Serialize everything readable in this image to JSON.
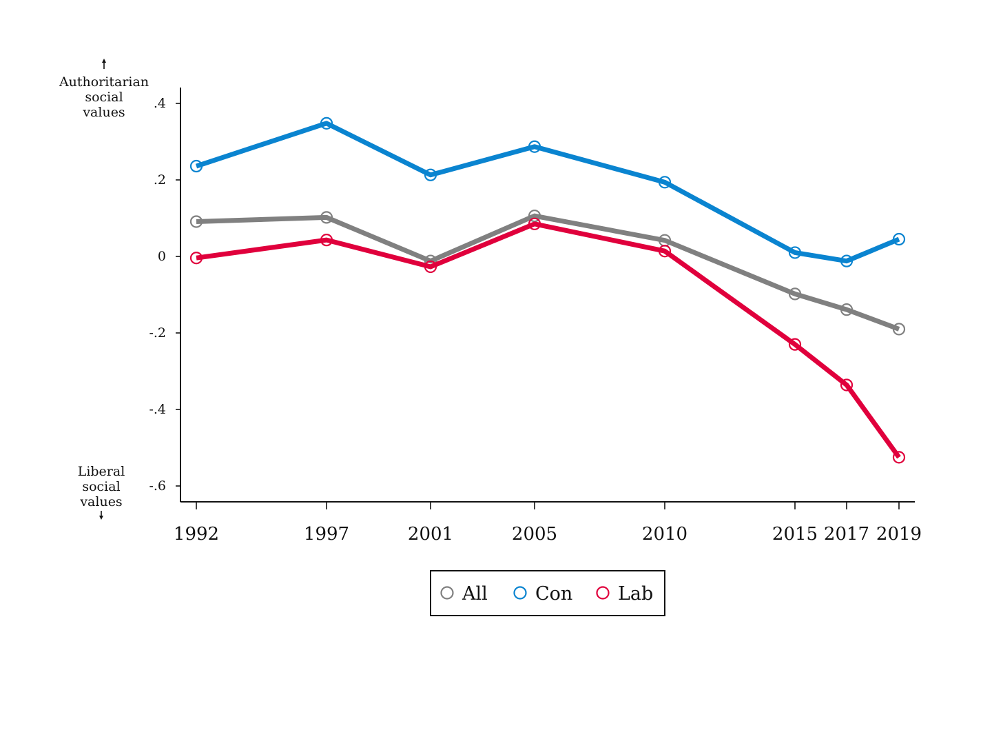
{
  "chart_data": {
    "type": "line",
    "title": "",
    "xlabel": "",
    "ylabel": "",
    "x": [
      1992,
      1997,
      2001,
      2005,
      2010,
      2015,
      2017,
      2019
    ],
    "x_tick_labels": [
      "1992",
      "1997",
      "2001",
      "2005",
      "2010",
      "2015",
      "2017",
      "2019"
    ],
    "xlim": [
      1991.4,
      2020.6
    ],
    "ylim": [
      -0.64,
      0.44
    ],
    "y_ticks": [
      0.4,
      0.2,
      0,
      -0.2,
      -0.4,
      -0.6
    ],
    "y_tick_labels": [
      ".4",
      ".2",
      "0",
      "-.2",
      "-.4",
      "-.6"
    ],
    "grid": false,
    "legend_placement": "bottom",
    "annotations": {
      "top": [
        "Authoritarian",
        "social",
        "values"
      ],
      "bottom": [
        "Liberal",
        "social",
        "values"
      ]
    },
    "series": [
      {
        "name": "All",
        "color": "#808080",
        "values": [
          0.091,
          0.102,
          -0.012,
          0.106,
          0.042,
          -0.098,
          -0.139,
          -0.19
        ]
      },
      {
        "name": "Con",
        "color": "#0a84d0",
        "values": [
          0.236,
          0.348,
          0.213,
          0.287,
          0.194,
          0.01,
          -0.012,
          0.045
        ]
      },
      {
        "name": "Lab",
        "color": "#e0003c",
        "values": [
          -0.004,
          0.043,
          -0.027,
          0.085,
          0.014,
          -0.23,
          -0.336,
          -0.525
        ]
      }
    ]
  }
}
